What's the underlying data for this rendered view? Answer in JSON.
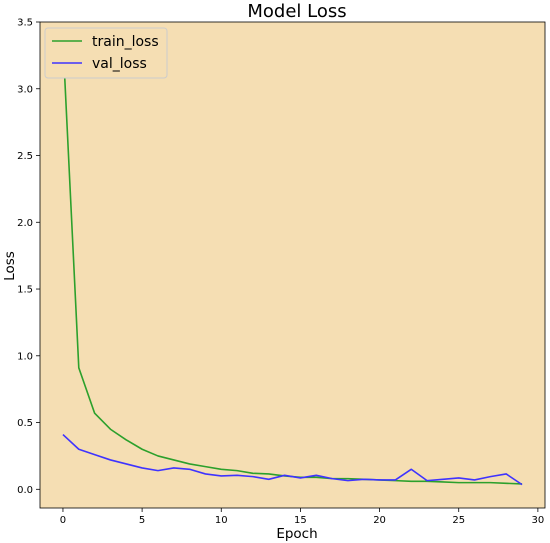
{
  "chart_data": {
    "type": "line",
    "title": "Model Loss",
    "xlabel": "Epoch",
    "ylabel": "Loss",
    "xlim": [
      -1.45,
      30.45
    ],
    "ylim": [
      -0.14,
      3.5
    ],
    "xticks": [
      0,
      5,
      10,
      15,
      20,
      25,
      30
    ],
    "xtick_labels": [
      "0",
      "5",
      "10",
      "15",
      "20",
      "25",
      "30"
    ],
    "yticks": [
      0.0,
      0.5,
      1.0,
      1.5,
      2.0,
      2.5,
      3.0,
      3.5
    ],
    "ytick_labels": [
      "0.0",
      "0.5",
      "1.0",
      "1.5",
      "2.0",
      "2.5",
      "3.0",
      "3.5"
    ],
    "grid": false,
    "legend_position": "top-left",
    "background_color": "#F5DEB3",
    "x": [
      0,
      1,
      2,
      3,
      4,
      5,
      6,
      7,
      8,
      9,
      10,
      11,
      12,
      13,
      14,
      15,
      16,
      17,
      18,
      19,
      20,
      21,
      22,
      23,
      24,
      25,
      26,
      27,
      28,
      29
    ],
    "series": [
      {
        "name": "train_loss",
        "color": "#2CA02C",
        "values": [
          3.36,
          0.91,
          0.57,
          0.45,
          0.37,
          0.3,
          0.25,
          0.22,
          0.19,
          0.17,
          0.15,
          0.14,
          0.12,
          0.115,
          0.1,
          0.09,
          0.09,
          0.08,
          0.08,
          0.075,
          0.07,
          0.065,
          0.06,
          0.06,
          0.055,
          0.05,
          0.05,
          0.05,
          0.045,
          0.04
        ]
      },
      {
        "name": "val_loss",
        "color": "#3F33FF",
        "values": [
          0.41,
          0.3,
          0.26,
          0.22,
          0.19,
          0.16,
          0.14,
          0.16,
          0.15,
          0.115,
          0.1,
          0.105,
          0.095,
          0.075,
          0.105,
          0.085,
          0.105,
          0.08,
          0.065,
          0.075,
          0.07,
          0.07,
          0.15,
          0.065,
          0.075,
          0.085,
          0.07,
          0.095,
          0.115,
          0.035
        ]
      }
    ]
  }
}
